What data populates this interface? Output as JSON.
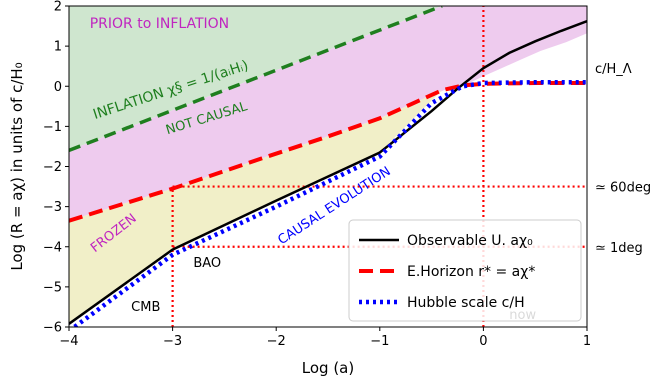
{
  "chart_data": {
    "type": "line",
    "xlabel": "Log (a)",
    "ylabel": "Log (R = aχ)  in units of c/H₀",
    "xlim": [
      -4,
      1
    ],
    "ylim": [
      -6,
      2
    ],
    "grid": false,
    "legend_position": "lower-right",
    "x_ticks": [
      "−4",
      "−3",
      "−2",
      "−1",
      "0",
      "1"
    ],
    "y_ticks": [
      "−6",
      "−5",
      "−4",
      "−3",
      "−2",
      "−1",
      "0",
      "1",
      "2"
    ],
    "regions": [
      {
        "name": "prior",
        "color": "#cfe6cf",
        "polygon": [
          [
            -4,
            -1.6
          ],
          [
            -0.4,
            2
          ],
          [
            -4,
            2
          ]
        ]
      },
      {
        "name": "not-causal",
        "color": "#eecbee",
        "polygon": [
          [
            -4,
            -3.35
          ],
          [
            -3,
            -2.55
          ],
          [
            -2.2,
            -1.85
          ],
          [
            -1.5,
            -1.25
          ],
          [
            -1,
            -0.8
          ],
          [
            -0.7,
            -0.45
          ],
          [
            -0.38,
            -0.1
          ],
          [
            -0.12,
            0.1
          ],
          [
            0,
            0.25
          ],
          [
            0.15,
            0.42
          ],
          [
            0.35,
            0.65
          ],
          [
            0.55,
            0.88
          ],
          [
            0.8,
            1.1
          ],
          [
            1,
            1.32
          ],
          [
            1,
            2
          ],
          [
            -0.4,
            2
          ],
          [
            -4,
            -1.6
          ]
        ]
      },
      {
        "name": "frozen",
        "color": "#f1efc8",
        "polygon": [
          [
            -4,
            -5.92
          ],
          [
            -3,
            -4.07
          ],
          [
            -2,
            -2.85
          ],
          [
            -1,
            -1.65
          ],
          [
            -0.4,
            -0.1
          ],
          [
            -0.7,
            -0.45
          ],
          [
            -1,
            -0.8
          ],
          [
            -1.5,
            -1.25
          ],
          [
            -2.2,
            -1.85
          ],
          [
            -3,
            -2.55
          ],
          [
            -4,
            -3.35
          ]
        ]
      }
    ],
    "series": [
      {
        "name": "Observable U. aχ₀",
        "color": "#000000",
        "dash": "solid",
        "width": 2.5,
        "x": [
          -4,
          -3,
          -2,
          -1,
          -0.5,
          -0.25,
          0,
          0.25,
          0.5,
          0.75,
          1
        ],
        "y": [
          -5.92,
          -4.07,
          -2.85,
          -1.65,
          -0.62,
          -0.06,
          0.45,
          0.83,
          1.12,
          1.38,
          1.62
        ]
      },
      {
        "name": "E.Horizon r* = aχ*",
        "color": "#ff0000",
        "dash": "14,7",
        "width": 4,
        "x": [
          -4,
          -3,
          -2.2,
          -1.5,
          -1,
          -0.7,
          -0.4,
          -0.2,
          0,
          0.5,
          1
        ],
        "y": [
          -3.35,
          -2.55,
          -1.85,
          -1.25,
          -0.8,
          -0.45,
          -0.1,
          0.02,
          0.06,
          0.08,
          0.08
        ]
      },
      {
        "name": "Hubble scale c/H",
        "color": "#0000ff",
        "dash": "3,4",
        "width": 4.5,
        "x": [
          -4,
          -3,
          -2,
          -1,
          -0.5,
          -0.2,
          0,
          0.5,
          1
        ],
        "y": [
          -6.1,
          -4.2,
          -3.0,
          -1.75,
          -0.42,
          0.0,
          0.08,
          0.1,
          0.1
        ]
      },
      {
        "name": "inflation",
        "color": "#1f7f1f",
        "dash": "12,7",
        "width": 3.5,
        "x": [
          -4,
          -0.4
        ],
        "y": [
          -1.6,
          2
        ]
      }
    ],
    "reference_lines": [
      {
        "orientation": "horizontal",
        "y": -2.5,
        "from_x": -3,
        "to_x": 1,
        "color": "#ff0000",
        "dash": "2,3"
      },
      {
        "orientation": "horizontal",
        "y": -4,
        "from_x": -3,
        "to_x": 1,
        "color": "#ff0000",
        "dash": "2,3"
      },
      {
        "orientation": "vertical",
        "x": -3,
        "from_y": -6,
        "to_y": -2.5,
        "color": "#ff0000",
        "dash": "2,3"
      },
      {
        "orientation": "vertical",
        "x": 0,
        "from_y": -6,
        "to_y": 2,
        "color": "#ff0000",
        "dash": "2,3"
      }
    ],
    "annotations": [
      {
        "text": "PRIOR to INFLATION",
        "x": -3.8,
        "y": 1.45,
        "color": "#c025c0",
        "size": 14,
        "rotate": 0
      },
      {
        "text": "INFLATION  χ§ = 1/(aᵢHᵢ)",
        "x": -3.75,
        "y": -0.82,
        "color": "#1f7f1f",
        "size": 14,
        "rotate": -18
      },
      {
        "text": "NOT CAUSAL",
        "x": -3.05,
        "y": -1.2,
        "color": "#1f7f1f",
        "size": 13,
        "rotate": -17
      },
      {
        "text": "CAUSAL EVOLUTION",
        "x": -1.95,
        "y": -3.95,
        "color": "#0000ff",
        "size": 13,
        "rotate": -33
      },
      {
        "text": "FROZEN",
        "x": -3.75,
        "y": -4.15,
        "color": "#c025c0",
        "size": 13,
        "rotate": -38
      },
      {
        "text": "BAO",
        "x": -2.8,
        "y": -4.5,
        "color": "#000000",
        "size": 13,
        "rotate": 0
      },
      {
        "text": "CMB",
        "x": -3.4,
        "y": -5.6,
        "color": "#000000",
        "size": 13,
        "rotate": 0
      },
      {
        "text": "now",
        "x": 0.25,
        "y": -5.8,
        "color": "#000000",
        "size": 13,
        "rotate": 0
      }
    ],
    "right_labels": [
      {
        "text": "c/H_Λ",
        "y": 0.45
      },
      {
        "text": "≃ 60deg",
        "y": -2.5
      },
      {
        "text": "≃ 1deg",
        "y": -4
      }
    ]
  }
}
